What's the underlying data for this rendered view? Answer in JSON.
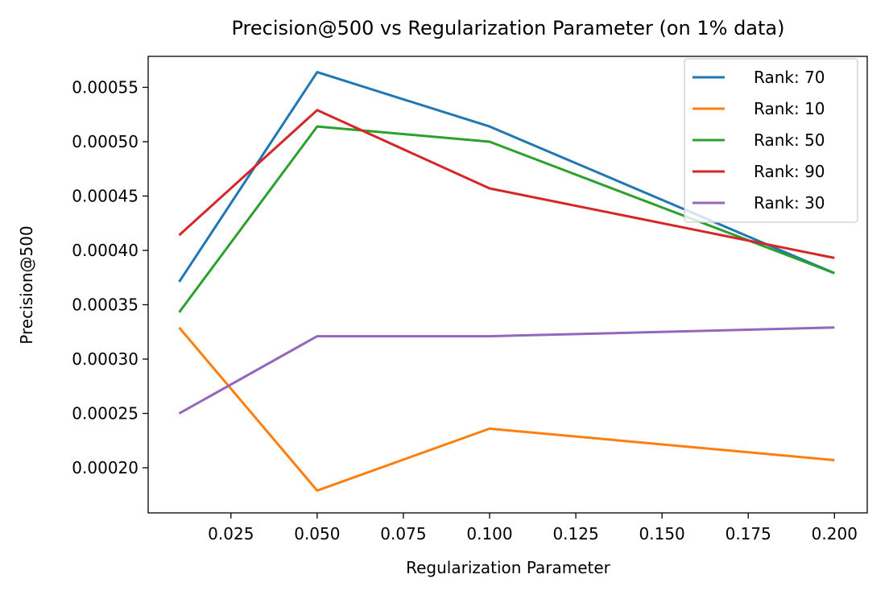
{
  "chart_data": {
    "type": "line",
    "title": "Precision@500 vs Regularization Parameter (on 1% data)",
    "xlabel": "Regularization Parameter",
    "ylabel": "Precision@500",
    "x": [
      0.01,
      0.05,
      0.1,
      0.2
    ],
    "xlim": [
      0.001,
      0.2095
    ],
    "ylim": [
      0.0001585,
      0.0005785
    ],
    "xticks": [
      0.025,
      0.05,
      0.075,
      0.1,
      0.125,
      0.15,
      0.175,
      0.2
    ],
    "xtick_labels": [
      "0.025",
      "0.050",
      "0.075",
      "0.100",
      "0.125",
      "0.150",
      "0.175",
      "0.200"
    ],
    "yticks": [
      0.0002,
      0.00025,
      0.0003,
      0.00035,
      0.0004,
      0.00045,
      0.0005,
      0.00055
    ],
    "ytick_labels": [
      "0.00020",
      "0.00025",
      "0.00030",
      "0.00035",
      "0.00040",
      "0.00045",
      "0.00050",
      "0.00055"
    ],
    "grid": false,
    "legend_position": "top-right",
    "series": [
      {
        "name": "Rank: 70",
        "color": "#1f77b4",
        "values": [
          0.000371,
          0.000564,
          0.000514,
          0.000379
        ]
      },
      {
        "name": "Rank: 10",
        "color": "#ff7f0e",
        "values": [
          0.000329,
          0.000179,
          0.000236,
          0.000207
        ]
      },
      {
        "name": "Rank: 50",
        "color": "#2ca02c",
        "values": [
          0.000343,
          0.000514,
          0.0005,
          0.000379
        ]
      },
      {
        "name": "Rank: 90",
        "color": "#d62728",
        "values": [
          0.000414,
          0.000529,
          0.000457,
          0.000393
        ]
      },
      {
        "name": "Rank: 30",
        "color": "#9467bd",
        "values": [
          0.00025,
          0.000321,
          0.000321,
          0.000329
        ]
      }
    ]
  }
}
